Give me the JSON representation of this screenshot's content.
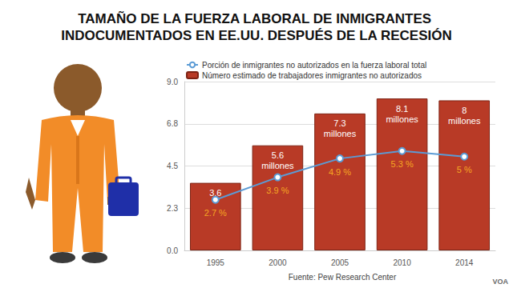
{
  "chart_data": {
    "type": "bar",
    "title": "TAMAÑO DE LA FUERZA LABORAL DE INMIGRANTES INDOCUMENTADOS EN EE.UU. DESPUÉS DE LA RECESIÓN",
    "categories": [
      "1995",
      "2000",
      "2005",
      "2010",
      "2014"
    ],
    "series": [
      {
        "name": "Porción de inmigrantes no autorizados en la fuerza laboral total",
        "type": "line",
        "color": "#5b9bd5",
        "marker": "circle",
        "values": [
          2.7,
          3.9,
          4.9,
          5.3,
          5
        ],
        "value_labels": [
          "2.7 %",
          "3.9 %",
          "4.9 %",
          "5.3 %",
          "5 %"
        ]
      },
      {
        "name": "Número estimado de trabajadores inmigrantes no autorizados",
        "type": "bar",
        "color": "#b83a26",
        "values": [
          3.6,
          5.6,
          7.3,
          8.1,
          8
        ],
        "value_labels": [
          "3.6",
          "5.6 millones",
          "7.3 millones",
          "8.1 millones",
          "8 millones"
        ]
      }
    ],
    "ylim": [
      0,
      9
    ],
    "yticks": [
      {
        "value": 0,
        "label": "0.0"
      },
      {
        "value": 2.25,
        "label": "2.3"
      },
      4.5,
      {
        "value": 6.75,
        "label": "6.8"
      },
      {
        "value": 9,
        "label": "9.0"
      }
    ],
    "grid": true,
    "legend": "top-left",
    "data_labels": true,
    "source": "Fuente: Pew Research Center",
    "annotations": [
      "VOA"
    ]
  }
}
